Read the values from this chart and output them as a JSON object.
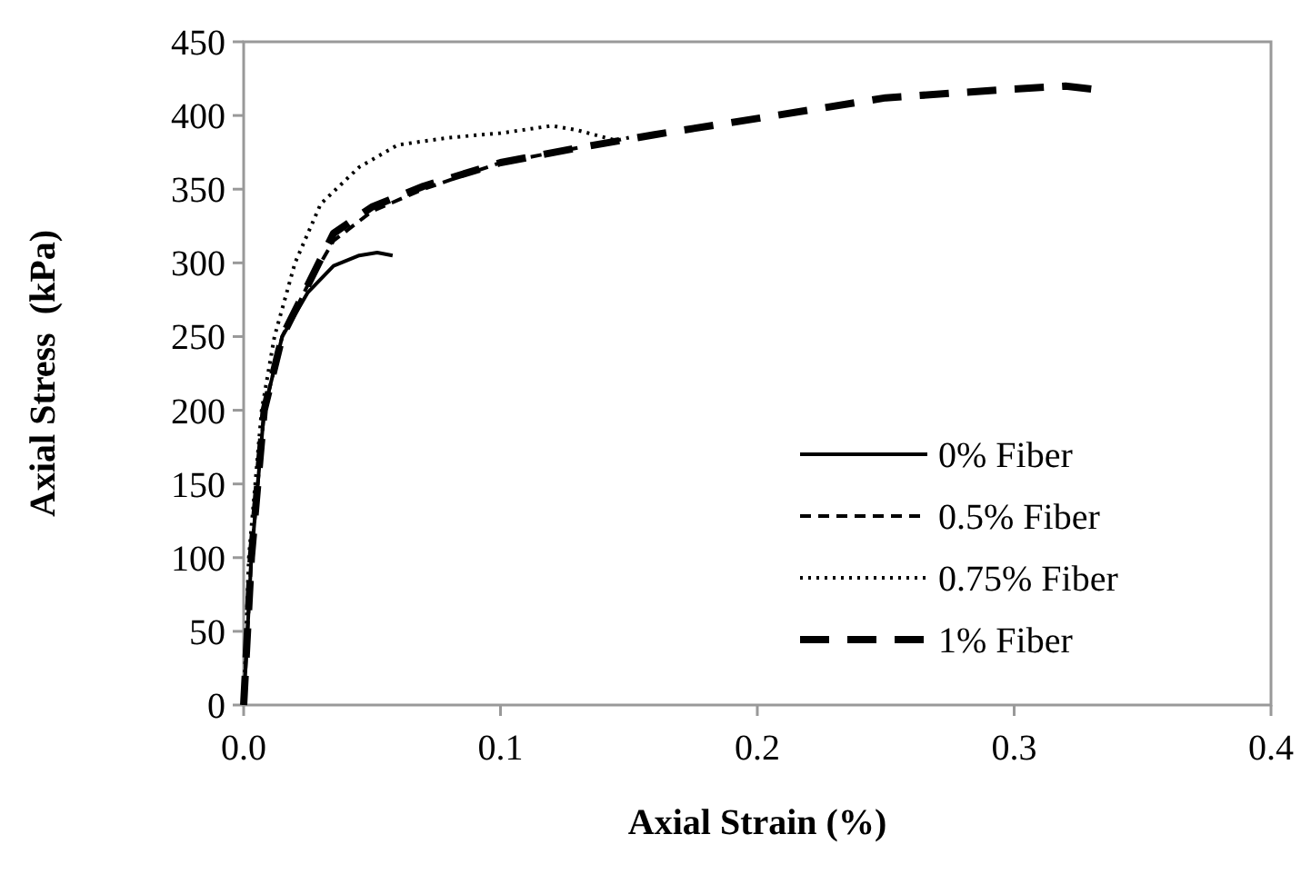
{
  "chart_data": {
    "type": "line",
    "xlabel": "Axial Strain (%)",
    "ylabel": "Axial Stress  (kPa)",
    "xlim": [
      0,
      0.4
    ],
    "xticks": [
      {
        "value": 0,
        "label": "0.0"
      },
      0.1,
      0.2,
      0.3,
      0.4
    ],
    "ylim": [
      0,
      450
    ],
    "yticks": [
      0,
      50,
      100,
      150,
      200,
      250,
      300,
      350,
      400,
      450
    ],
    "grid": false,
    "legend": "bottom right",
    "series": [
      {
        "name": "0% Fiber",
        "color": "#000000",
        "line_style": "solid",
        "x": [
          0,
          0.003,
          0.008,
          0.015,
          0.025,
          0.035,
          0.045,
          0.052,
          0.058
        ],
        "values": [
          0,
          100,
          200,
          250,
          280,
          298,
          305,
          307,
          305
        ]
      },
      {
        "name": "0.5% Fiber",
        "color": "#000000",
        "line_style": "dashed",
        "x": [
          0,
          0.003,
          0.008,
          0.015,
          0.025,
          0.035,
          0.05,
          0.07,
          0.1,
          0.13
        ],
        "values": [
          0,
          100,
          200,
          250,
          285,
          315,
          335,
          350,
          368,
          378
        ]
      },
      {
        "name": "0.75% Fiber",
        "color": "#000000",
        "line_style": "dotted",
        "x": [
          0,
          0.002,
          0.007,
          0.012,
          0.02,
          0.03,
          0.045,
          0.06,
          0.08,
          0.1,
          0.12,
          0.13,
          0.145,
          0.15
        ],
        "values": [
          0,
          100,
          200,
          250,
          300,
          340,
          365,
          380,
          385,
          388,
          393,
          390,
          383,
          385
        ]
      },
      {
        "name": "1% Fiber",
        "color": "#000000",
        "line_style": "longdash",
        "x": [
          0,
          0.003,
          0.008,
          0.015,
          0.025,
          0.035,
          0.05,
          0.07,
          0.1,
          0.13,
          0.16,
          0.2,
          0.25,
          0.3,
          0.32,
          0.33
        ],
        "values": [
          0,
          100,
          200,
          250,
          285,
          320,
          338,
          352,
          368,
          378,
          387,
          398,
          412,
          418,
          420,
          418
        ]
      }
    ]
  }
}
